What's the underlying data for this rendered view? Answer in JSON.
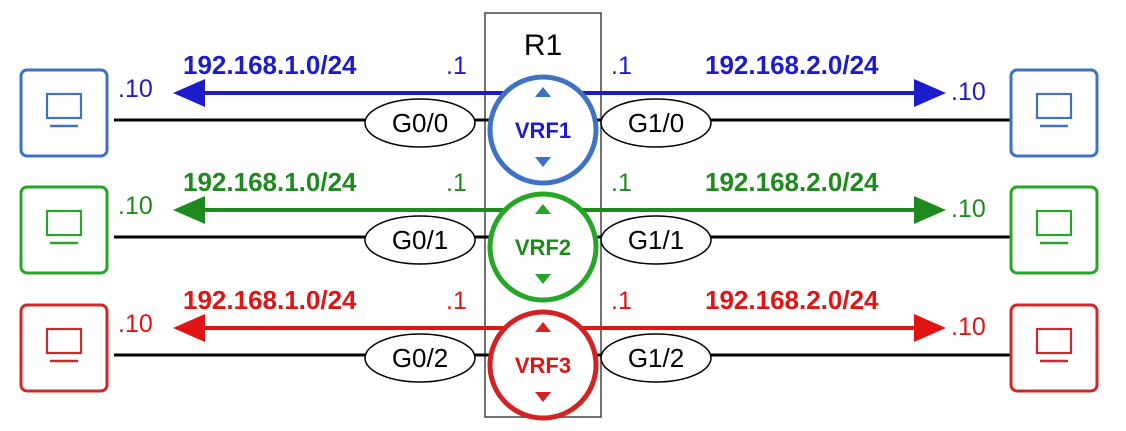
{
  "router": {
    "name": "R1"
  },
  "rows": [
    {
      "vrf": "VRF1",
      "color": "#1c1ccc",
      "pc_color": "#3d72c4",
      "vrf_color": "#3d72c4",
      "left_subnet": "192.168.1.0/24",
      "right_subnet": "192.168.2.0/24",
      "left_iface": "G0/0",
      "right_iface": "G1/0",
      "left_gw": ".1",
      "right_gw": ".1",
      "left_host": ".10",
      "right_host": ".10"
    },
    {
      "vrf": "VRF2",
      "color": "#1e8a1e",
      "pc_color": "#26a626",
      "vrf_color": "#26a626",
      "left_subnet": "192.168.1.0/24",
      "right_subnet": "192.168.2.0/24",
      "left_iface": "G0/1",
      "right_iface": "G1/1",
      "left_gw": ".1",
      "right_gw": ".1",
      "left_host": ".10",
      "right_host": ".10"
    },
    {
      "vrf": "VRF3",
      "color": "#e01414",
      "pc_color": "#cc2a2a",
      "vrf_color": "#d42222",
      "left_subnet": "192.168.1.0/24",
      "right_subnet": "192.168.2.0/24",
      "left_iface": "G0/2",
      "right_iface": "G1/2",
      "left_gw": ".1",
      "right_gw": ".1",
      "left_host": ".10",
      "right_host": ".10"
    }
  ]
}
